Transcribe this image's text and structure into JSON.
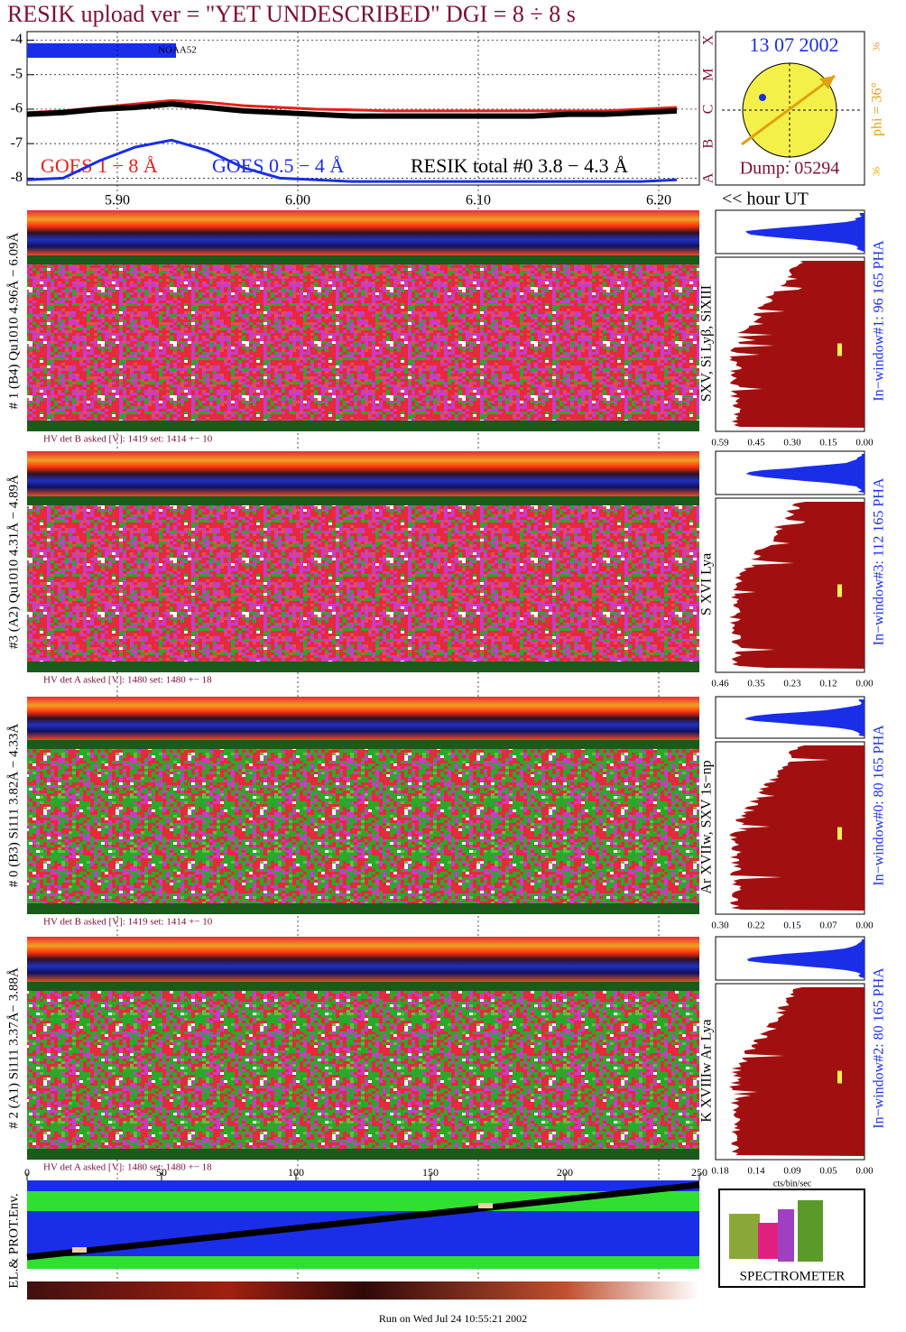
{
  "header": {
    "title": "RESIK upload ver = \"YET UNDESCRIBED\"  DGI =   8 ÷   8 s"
  },
  "chart_data": {
    "type": "line",
    "x": [
      5.85,
      5.87,
      5.89,
      5.91,
      5.93,
      5.95,
      5.97,
      5.99,
      6.01,
      6.03,
      6.05,
      6.07,
      6.09,
      6.11,
      6.13,
      6.15,
      6.17,
      6.19,
      6.21
    ],
    "xlim": [
      5.85,
      6.2225
    ],
    "xticks": [
      {
        "value": 5.9,
        "label": "5.90"
      },
      {
        "value": 6.0,
        "label": "6.00"
      },
      {
        "value": 6.1,
        "label": "6.10"
      },
      {
        "value": 6.2,
        "label": "6.20"
      }
    ],
    "ylim": [
      -8.2,
      -3.75
    ],
    "yticks": [
      -4,
      -5,
      -6,
      -7,
      -8
    ],
    "class_labels": [
      "A",
      "B",
      "C",
      "M",
      "X"
    ],
    "series": [
      {
        "name": "GOES 1 − 8 Å",
        "color": "#e8201a",
        "values": [
          -6.1,
          -6.05,
          -5.95,
          -5.85,
          -5.75,
          -5.8,
          -5.9,
          -5.95,
          -6.0,
          -6.02,
          -6.05,
          -6.05,
          -6.05,
          -6.05,
          -6.05,
          -6.05,
          -6.05,
          -6.0,
          -5.95
        ]
      },
      {
        "name": "GOES 0.5 − 4 Å",
        "color": "#1a2ee8",
        "values": [
          -8.05,
          -8.0,
          -7.5,
          -7.1,
          -6.9,
          -7.2,
          -7.7,
          -8.0,
          -8.05,
          -8.1,
          -8.1,
          -8.1,
          -8.1,
          -8.1,
          -8.1,
          -8.1,
          -8.1,
          -8.1,
          -8.05
        ]
      },
      {
        "name": "RESIK total #0  3.8 − 4.3 Å",
        "color": "#000000",
        "values": [
          -6.15,
          -6.1,
          -6.0,
          -5.95,
          -5.85,
          -5.95,
          -6.05,
          -6.1,
          -6.15,
          -6.2,
          -6.2,
          -6.2,
          -6.2,
          -6.2,
          -6.2,
          -6.15,
          -6.15,
          -6.1,
          -6.05
        ]
      }
    ],
    "satellite": "NOAA52",
    "hour_label": "<< hour UT"
  },
  "sun": {
    "date": "13 07 2002",
    "phi": "phi = 36°",
    "dump": "Dump: 05294",
    "top_num": "36",
    "bottom_num": "36"
  },
  "panels": [
    {
      "left_label": "# 1 (B4) Qu1010 4.96Å − 6.09Å",
      "right_label": "SXV, Si Lyβ, SiXIII",
      "window_label": "In−window#1:   96 165 PHA",
      "hv": "HV det B asked [V]:  1419 set:  1414 +−   10",
      "hist_ticks": [
        "0.59",
        "0.45",
        "0.30",
        "0.15",
        "0.00"
      ]
    },
    {
      "left_label": "#3 (A2) Qu1010  4.31Å − 4.89Å",
      "right_label": "S XVI Lya",
      "window_label": "In−window#3:  112 165 PHA",
      "hv": "HV det A asked [V]:  1480 set:  1480 +−   18",
      "hist_ticks": [
        "0.46",
        "0.35",
        "0.23",
        "0.12",
        "0.00"
      ]
    },
    {
      "left_label": "# 0 (B3) Si111  3.82Å − 4.33Å",
      "right_label": "Ar XVIIw,  SXV 1s−np",
      "window_label": "In−window#0:   80 165 PHA",
      "hv": "HV det B asked [V]:  1419 set:  1414 +−   10",
      "hist_ticks": [
        "0.30",
        "0.22",
        "0.15",
        "0.07",
        "0.00"
      ]
    },
    {
      "left_label": "# 2 (A1) Si111  3.37Å− 3.88Å",
      "right_label": "K XVIIIw  Ar Lya",
      "window_label": "In−window#2:   80 165 PHA",
      "hv": "HV det A asked [V]:  1480 set:  1480 +−   18",
      "hist_ticks": [
        "0.18",
        "0.14",
        "0.09",
        "0.05",
        "0.00"
      ]
    }
  ],
  "hist_unit": "cts/bin/sec",
  "env": {
    "label": "EL.& PROT.Env.",
    "xlim": [
      0,
      250
    ],
    "xticks": [
      0,
      50,
      100,
      150,
      200,
      250
    ]
  },
  "logo": {
    "text": "SPECTROMETER"
  },
  "footer": "Run on Wed Jul 24 10:55:21 2002"
}
